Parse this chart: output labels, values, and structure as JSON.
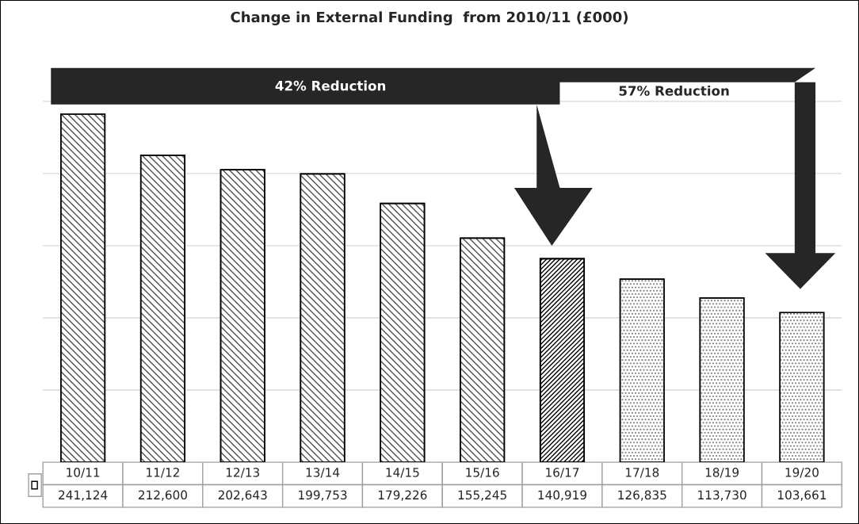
{
  "chart_data": {
    "type": "bar",
    "title": "Change in External Funding  from 2010/11 (£000)",
    "categories": [
      "10/11",
      "11/12",
      "12/13",
      "13/14",
      "14/15",
      "15/16",
      "16/17",
      "17/18",
      "18/19",
      "19/20"
    ],
    "values": [
      241124,
      212600,
      202643,
      199753,
      179226,
      155245,
      140919,
      126835,
      113730,
      103661
    ],
    "colors": [
      "#505050",
      "#505050",
      "#505050",
      "#505050",
      "#505050",
      "#505050",
      "#000000",
      "#808080",
      "#808080",
      "#808080"
    ],
    "annotations": [
      "42% Reduction",
      "57% Reduction"
    ],
    "value_labels": [
      "241,124",
      "212,600",
      "202,643",
      "199,753",
      "179,226",
      "155,245",
      "140,919",
      "126,835",
      "113,730",
      "103,661"
    ],
    "grid": "y",
    "legend": false
  }
}
